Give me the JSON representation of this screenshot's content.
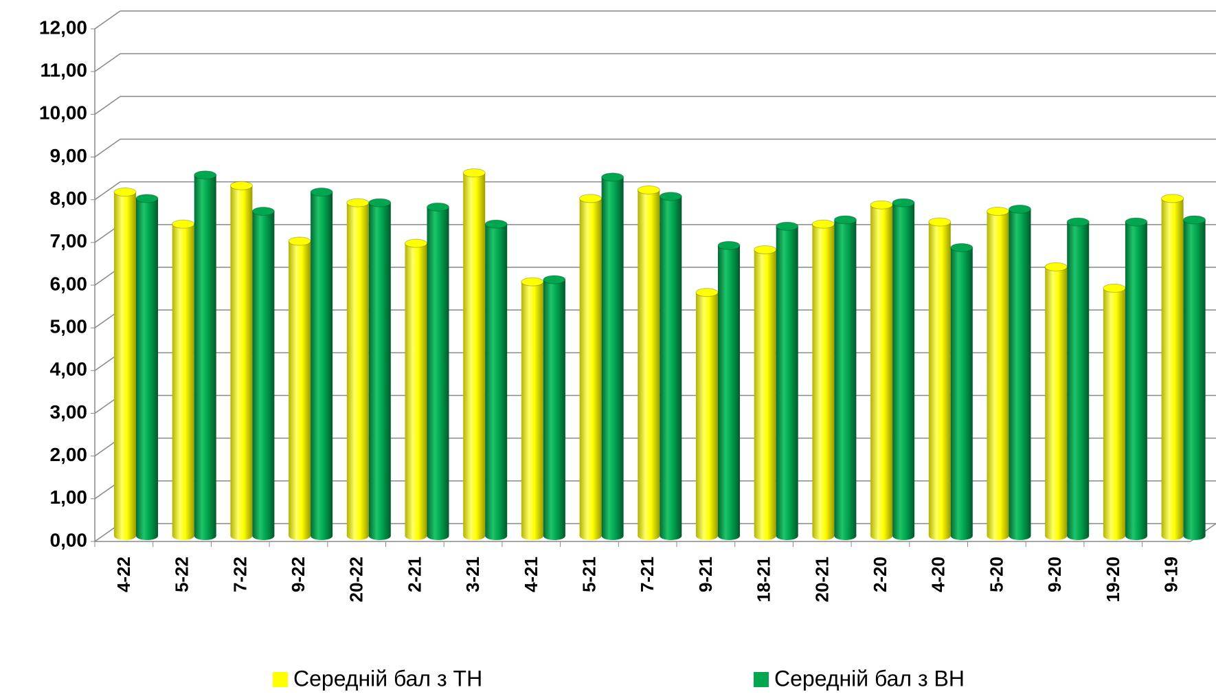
{
  "chart_data": {
    "type": "bar3d",
    "categories": [
      "4-22",
      "5-22",
      "7-22",
      "9-22",
      "20-22",
      "2-21",
      "3-21",
      "4-21",
      "5-21",
      "7-21",
      "9-21",
      "18-21",
      "20-21",
      "2-20",
      "4-20",
      "5-20",
      "9-20",
      "19-20",
      "9-19"
    ],
    "series": [
      {
        "name": "Середній бал з ТН",
        "color": "#ffff00",
        "values": [
          8.05,
          7.3,
          8.2,
          6.9,
          7.8,
          6.85,
          8.5,
          5.95,
          7.9,
          8.1,
          5.7,
          6.7,
          7.3,
          7.75,
          7.35,
          7.6,
          6.3,
          5.8,
          7.9
        ]
      },
      {
        "name": "Середній бал з ВН",
        "color": "#00a650",
        "values": [
          7.9,
          8.45,
          7.6,
          8.05,
          7.8,
          7.7,
          7.3,
          6.0,
          8.4,
          7.95,
          6.8,
          7.25,
          7.4,
          7.8,
          6.75,
          7.65,
          7.35,
          7.35,
          7.4
        ]
      }
    ],
    "ylim": [
      0,
      12
    ],
    "yticks": [
      {
        "value": 0,
        "label": "0,00"
      },
      {
        "value": 1,
        "label": "1,00"
      },
      {
        "value": 2,
        "label": "2,00"
      },
      {
        "value": 3,
        "label": "3,00"
      },
      {
        "value": 4,
        "label": "4,00"
      },
      {
        "value": 5,
        "label": "5,00"
      },
      {
        "value": 6,
        "label": "6,00"
      },
      {
        "value": 7,
        "label": "7,00"
      },
      {
        "value": 8,
        "label": "8,00"
      },
      {
        "value": 9,
        "label": "9,00"
      },
      {
        "value": 10,
        "label": "10,00"
      },
      {
        "value": 11,
        "label": "11,00"
      },
      {
        "value": 12,
        "label": "12,00"
      }
    ],
    "grid": true,
    "legend": "bottom"
  }
}
